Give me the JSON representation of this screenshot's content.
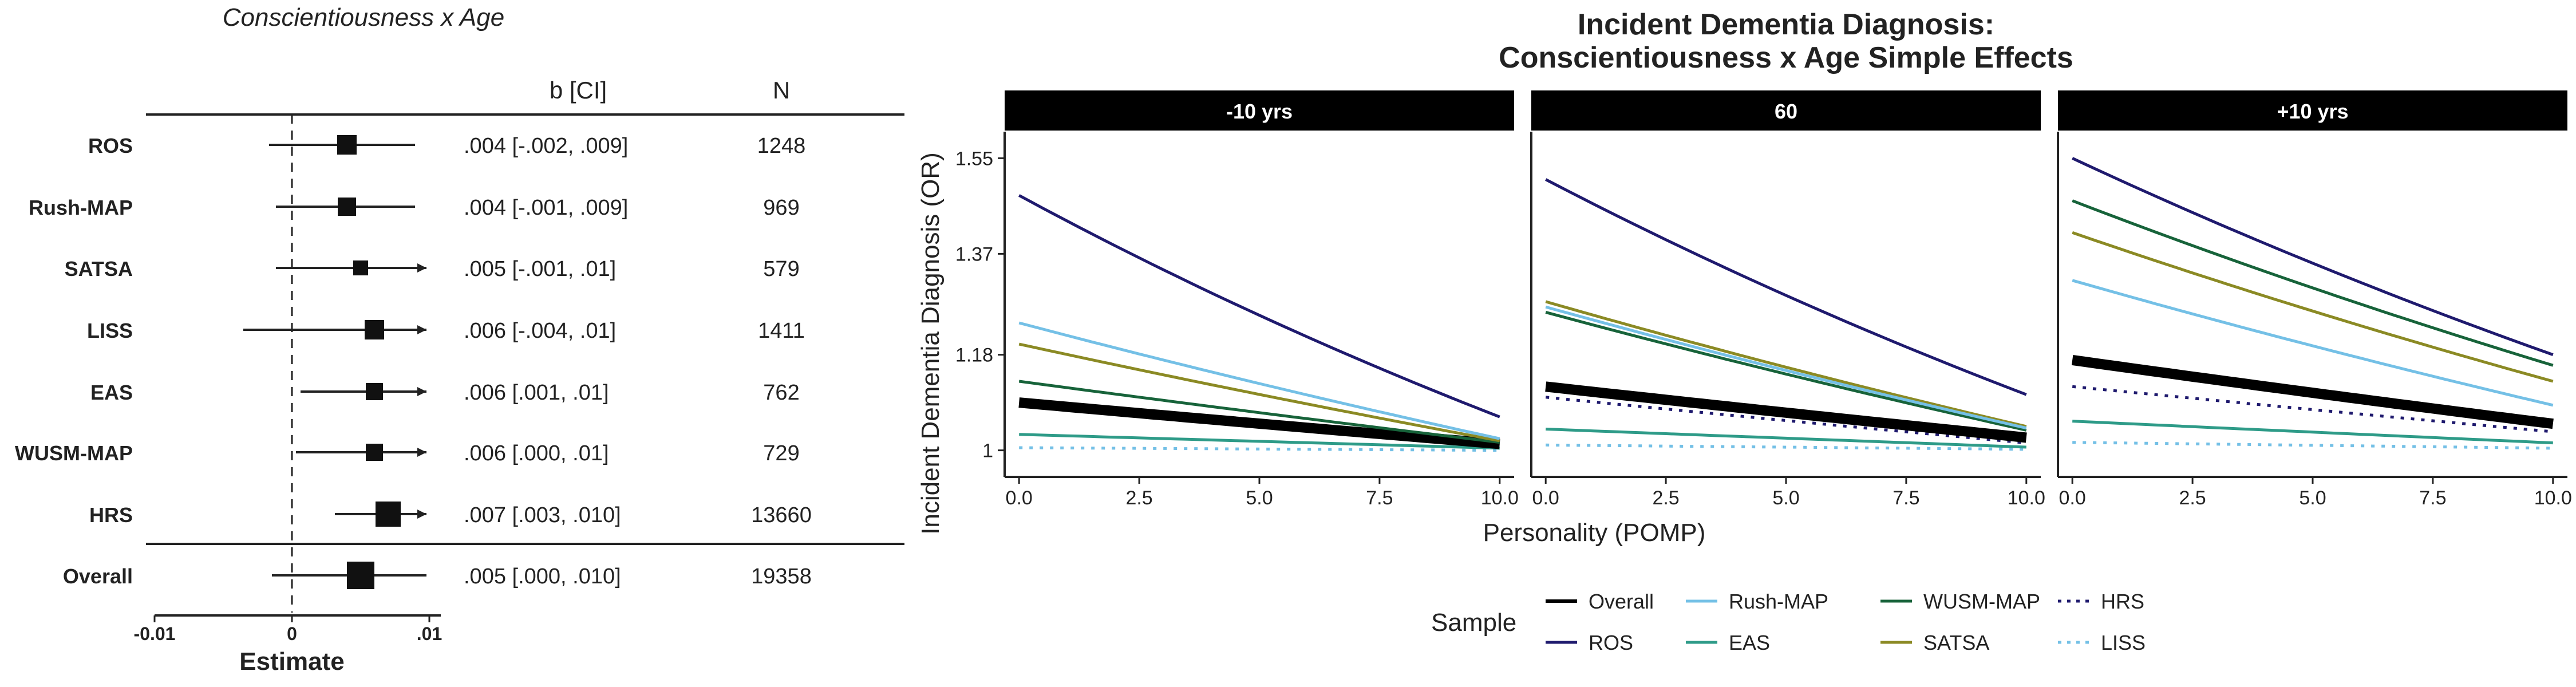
{
  "forest": {
    "title": "Conscientiousness x Age",
    "col_ci": "b [CI]",
    "col_n": "N",
    "xlabel": "Estimate",
    "xlim": [
      -0.01,
      0.01
    ],
    "xticks": [
      "-0.01",
      "0",
      ".01"
    ],
    "xtick_values": [
      -0.01,
      0,
      0.01
    ],
    "rows": [
      {
        "label": "ROS",
        "est": 0.004,
        "lo": -0.002,
        "hi": 0.009,
        "arrow": false,
        "ci_text": ".004 [-.002, .009]",
        "n": "1248",
        "size": 34
      },
      {
        "label": "Rush-MAP",
        "est": 0.004,
        "lo": -0.001,
        "hi": 0.009,
        "arrow": false,
        "ci_text": ".004 [-.001, .009]",
        "n": "969",
        "size": 32
      },
      {
        "label": "SATSA",
        "est": 0.005,
        "lo": -0.001,
        "hi": 0.01,
        "arrow": true,
        "ci_text": ".005 [-.001, .01]",
        "n": "579",
        "size": 26
      },
      {
        "label": "LISS",
        "est": 0.006,
        "lo": -0.004,
        "hi": 0.01,
        "arrow": true,
        "ci_text": ".006 [-.004, .01]",
        "n": "1411",
        "size": 34
      },
      {
        "label": "EAS",
        "est": 0.006,
        "lo": 0.001,
        "hi": 0.01,
        "arrow": true,
        "ci_text": ".006 [.001, .01]",
        "n": "762",
        "size": 30
      },
      {
        "label": "WUSM-MAP",
        "est": 0.006,
        "lo": 0.0,
        "hi": 0.01,
        "arrow": true,
        "ci_text": ".006 [.000, .01]",
        "n": "729",
        "size": 30
      },
      {
        "label": "HRS",
        "est": 0.007,
        "lo": 0.003,
        "hi": 0.01,
        "arrow": true,
        "ci_text": ".007 [.003, .010]",
        "n": "13660",
        "size": 44
      },
      {
        "label": "Overall",
        "est": 0.005,
        "lo": 0.0,
        "hi": 0.01,
        "arrow": false,
        "ci_text": ".005 [.000, .010]",
        "n": "19358",
        "size": 48
      }
    ]
  },
  "chart_data": {
    "type": "line",
    "title_line1": "Incident Dementia Diagnosis:",
    "title_line2": "Conscientiousness x Age Simple Effects",
    "xlabel": "Personality (POMP)",
    "ylabel": "Incident Dementia Diagnosis (OR)",
    "xlim": [
      -0.3,
      10.3
    ],
    "ylim": [
      0.95,
      1.6
    ],
    "xticks": [
      "0.0",
      "2.5",
      "5.0",
      "7.5",
      "10.0"
    ],
    "xtick_values": [
      0,
      2.5,
      5,
      7.5,
      10
    ],
    "yticks": [
      "1",
      "1.18",
      "1.37",
      "1.55"
    ],
    "ytick_values": [
      1,
      1.18,
      1.37,
      1.55
    ],
    "legend_title": "Sample",
    "panels": [
      {
        "label": "-10 yrs",
        "series": [
          {
            "name": "ROS",
            "y0": 1.48,
            "y10": 1.063
          },
          {
            "name": "Rush-MAP",
            "y0": 1.24,
            "y10": 1.022
          },
          {
            "name": "SATSA",
            "y0": 1.2,
            "y10": 1.018
          },
          {
            "name": "WUSM-MAP",
            "y0": 1.13,
            "y10": 1.015
          },
          {
            "name": "Overall",
            "y0": 1.09,
            "y10": 1.012
          },
          {
            "name": "HRS",
            "y0": 1.085,
            "y10": 1.01
          },
          {
            "name": "EAS",
            "y0": 1.03,
            "y10": 1.004
          },
          {
            "name": "LISS",
            "y0": 1.005,
            "y10": 1.0
          }
        ]
      },
      {
        "label": "60",
        "series": [
          {
            "name": "ROS",
            "y0": 1.51,
            "y10": 1.105
          },
          {
            "name": "SATSA",
            "y0": 1.28,
            "y10": 1.045
          },
          {
            "name": "Rush-MAP",
            "y0": 1.27,
            "y10": 1.042
          },
          {
            "name": "WUSM-MAP",
            "y0": 1.26,
            "y10": 1.038
          },
          {
            "name": "Overall",
            "y0": 1.12,
            "y10": 1.024
          },
          {
            "name": "HRS",
            "y0": 1.1,
            "y10": 1.014
          },
          {
            "name": "EAS",
            "y0": 1.04,
            "y10": 1.006
          },
          {
            "name": "LISS",
            "y0": 1.01,
            "y10": 1.002
          }
        ]
      },
      {
        "label": "+10 yrs",
        "series": [
          {
            "name": "ROS",
            "y0": 1.55,
            "y10": 1.18
          },
          {
            "name": "WUSM-MAP",
            "y0": 1.47,
            "y10": 1.16
          },
          {
            "name": "SATSA",
            "y0": 1.41,
            "y10": 1.13
          },
          {
            "name": "Rush-MAP",
            "y0": 1.32,
            "y10": 1.085
          },
          {
            "name": "Overall",
            "y0": 1.17,
            "y10": 1.05
          },
          {
            "name": "HRS",
            "y0": 1.12,
            "y10": 1.035
          },
          {
            "name": "EAS",
            "y0": 1.055,
            "y10": 1.014
          },
          {
            "name": "LISS",
            "y0": 1.015,
            "y10": 1.004
          }
        ]
      }
    ],
    "legend": [
      {
        "name": "Overall",
        "color": "#000000",
        "dash": "solid",
        "width": 6
      },
      {
        "name": "ROS",
        "color": "#1f1a6e",
        "dash": "solid",
        "width": 5
      },
      {
        "name": "Rush-MAP",
        "color": "#74c0e6",
        "dash": "solid",
        "width": 5
      },
      {
        "name": "EAS",
        "color": "#2e9b88",
        "dash": "solid",
        "width": 5
      },
      {
        "name": "WUSM-MAP",
        "color": "#17633a",
        "dash": "solid",
        "width": 5
      },
      {
        "name": "SATSA",
        "color": "#8b8a24",
        "dash": "solid",
        "width": 5
      },
      {
        "name": "HRS",
        "color": "#1f1a6e",
        "dash": "dotted",
        "width": 5
      },
      {
        "name": "LISS",
        "color": "#74c0e6",
        "dash": "dotted",
        "width": 5
      }
    ],
    "overall_line_width": 18
  }
}
